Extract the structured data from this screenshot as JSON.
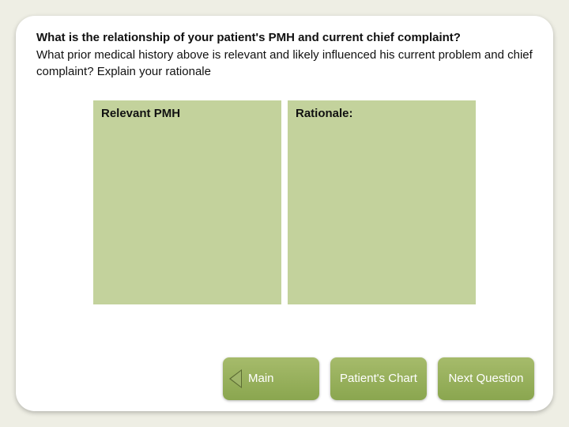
{
  "question": {
    "line1": "What is the relationship of your patient's PMH and current chief complaint?",
    "line2": "What prior medical history above is relevant and likely influenced his current problem and chief complaint? Explain your rationale"
  },
  "panels": {
    "left": {
      "header": "Relevant PMH"
    },
    "right": {
      "header": "Rationale:"
    }
  },
  "nav": {
    "main": "Main",
    "chart": "Patient's Chart",
    "next": "Next Question"
  },
  "colors": {
    "page_bg": "#eeeee4",
    "card_bg": "#ffffff",
    "panel_bg": "#c3d29c",
    "btn_top": "#a6bb6b",
    "btn_bottom": "#8aa64f",
    "btn_text": "#ffffff",
    "arrow_dark": "#5b6b33"
  }
}
